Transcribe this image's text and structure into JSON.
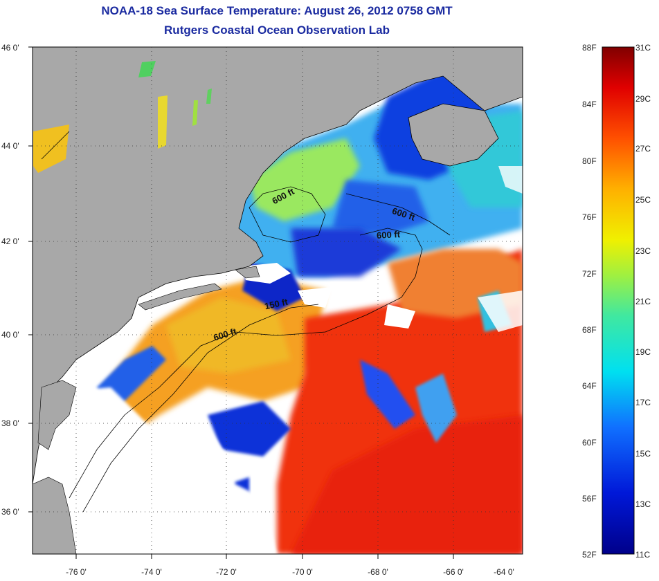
{
  "header": {
    "title": "NOAA-18 Sea Surface Temperature:  August 26, 2012 0758 GMT",
    "subtitle": "Rutgers Coastal Ocean Observation Lab"
  },
  "map": {
    "lat_labels": [
      "46 0'",
      "44 0'",
      "42 0'",
      "40 0'",
      "38 0'",
      "36 0'"
    ],
    "lon_labels": [
      "-76 0'",
      "-74 0'",
      "-72 0'",
      "-70 0'",
      "-68 0'",
      "-66 0'",
      "-64 0'"
    ],
    "contour_labels": [
      "600 ft",
      "600 ft",
      "600 ft",
      "150 ft",
      "600 ft"
    ],
    "colors": {
      "land": "#a8a8a8",
      "cloud": "#ffffff",
      "frame": "#000000"
    }
  },
  "colorbar": {
    "fahrenheit": [
      "88F",
      "84F",
      "80F",
      "76F",
      "72F",
      "68F",
      "64F",
      "60F",
      "56F",
      "52F"
    ],
    "celsius": [
      "31C",
      "29C",
      "27C",
      "25C",
      "23C",
      "21C",
      "19C",
      "17C",
      "15C",
      "13C",
      "11C"
    ]
  }
}
